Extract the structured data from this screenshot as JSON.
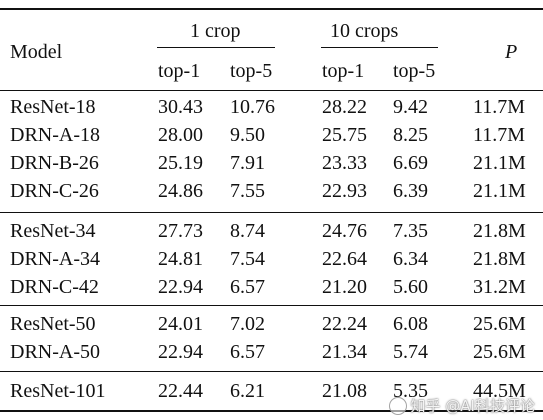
{
  "table": {
    "header": {
      "model": "Model",
      "group1": "1 crop",
      "group2": "10 crops",
      "params": "P",
      "sub": [
        "top-1",
        "top-5",
        "top-1",
        "top-5"
      ]
    },
    "groups": [
      [
        [
          "ResNet-18",
          "30.43",
          "10.76",
          "28.22",
          "9.42",
          "11.7M"
        ],
        [
          "DRN-A-18",
          "28.00",
          "9.50",
          "25.75",
          "8.25",
          "11.7M"
        ],
        [
          "DRN-B-26",
          "25.19",
          "7.91",
          "23.33",
          "6.69",
          "21.1M"
        ],
        [
          "DRN-C-26",
          "24.86",
          "7.55",
          "22.93",
          "6.39",
          "21.1M"
        ]
      ],
      [
        [
          "ResNet-34",
          "27.73",
          "8.74",
          "24.76",
          "7.35",
          "21.8M"
        ],
        [
          "DRN-A-34",
          "24.81",
          "7.54",
          "22.64",
          "6.34",
          "21.8M"
        ],
        [
          "DRN-C-42",
          "22.94",
          "6.57",
          "21.20",
          "5.60",
          "31.2M"
        ]
      ],
      [
        [
          "ResNet-50",
          "24.01",
          "7.02",
          "22.24",
          "6.08",
          "25.6M"
        ],
        [
          "DRN-A-50",
          "22.94",
          "6.57",
          "21.34",
          "5.74",
          "25.6M"
        ]
      ],
      [
        [
          "ResNet-101",
          "22.44",
          "6.21",
          "21.08",
          "5.35",
          "44.5M"
        ]
      ]
    ]
  },
  "watermark": "知乎 @AI科技评论"
}
